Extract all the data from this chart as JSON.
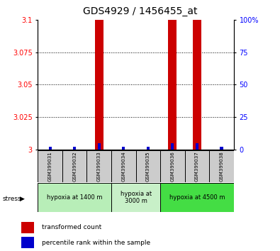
{
  "title": "GDS4929 / 1456455_at",
  "samples": [
    "GSM399031",
    "GSM399032",
    "GSM399033",
    "GSM399034",
    "GSM399035",
    "GSM399036",
    "GSM399037",
    "GSM399038"
  ],
  "transformed_counts": [
    3.0,
    3.0,
    3.1,
    3.0,
    3.0,
    3.1,
    3.1,
    3.0
  ],
  "percentile_ranks": [
    2,
    2,
    5,
    2,
    2,
    5,
    5,
    2
  ],
  "ylim_left": [
    3.0,
    3.1
  ],
  "ylim_right": [
    0,
    100
  ],
  "yticks_left": [
    3.0,
    3.025,
    3.05,
    3.075,
    3.1
  ],
  "ytick_labels_left": [
    "3",
    "3.025",
    "3.05",
    "3.075",
    "3.1"
  ],
  "yticks_right": [
    0,
    25,
    50,
    75,
    100
  ],
  "ytick_labels_right": [
    "0",
    "25",
    "50",
    "75",
    "100%"
  ],
  "groups": [
    {
      "label": "hypoxia at 1400 m",
      "samples": [
        0,
        1,
        2
      ],
      "color": "#b8eeb8"
    },
    {
      "label": "hypoxia at\n3000 m",
      "samples": [
        3,
        4
      ],
      "color": "#c8f0c8"
    },
    {
      "label": "hypoxia at 4500 m",
      "samples": [
        5,
        6,
        7
      ],
      "color": "#44dd44"
    }
  ],
  "bar_color_red": "#cc0000",
  "bar_color_blue": "#0000cc",
  "background_color": "#ffffff",
  "sample_box_color": "#cccccc",
  "title_fontsize": 10,
  "tick_fontsize": 7,
  "bar_width": 0.35,
  "blue_bar_width": 0.12
}
